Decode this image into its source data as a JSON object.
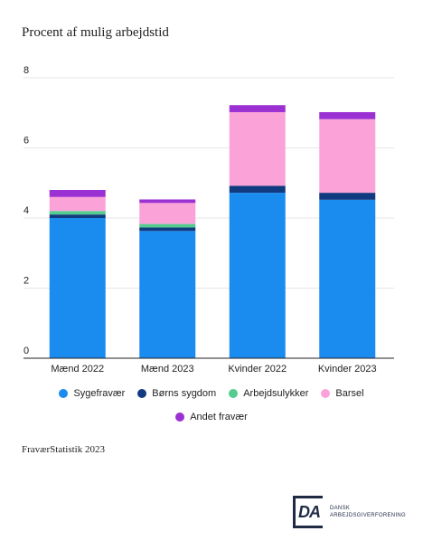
{
  "chart_data": {
    "type": "bar",
    "stacked": true,
    "title": "Procent af mulig arbejdstid",
    "categories": [
      "Mænd 2022",
      "Mænd 2023",
      "Kvinder 2022",
      "Kvinder 2023"
    ],
    "series": [
      {
        "name": "Sygefravær",
        "color": "#1a8cf0",
        "values": [
          4.0,
          3.63,
          4.72,
          4.52
        ]
      },
      {
        "name": "Børns sygdom",
        "color": "#123a80",
        "values": [
          0.1,
          0.1,
          0.2,
          0.2
        ]
      },
      {
        "name": "Arbejdsulykker",
        "color": "#54cc8e",
        "values": [
          0.1,
          0.1,
          0.0,
          0.0
        ]
      },
      {
        "name": "Barsel",
        "color": "#fba3d8",
        "values": [
          0.4,
          0.6,
          2.1,
          2.1
        ]
      },
      {
        "name": "Andet fravær",
        "color": "#9b30d3",
        "values": [
          0.2,
          0.1,
          0.2,
          0.2
        ]
      }
    ],
    "ylim": [
      0,
      8
    ],
    "yticks": [
      "0",
      "2",
      "4",
      "6",
      "8"
    ],
    "grid": true,
    "legend_position": "bottom",
    "xlabel": "",
    "ylabel": ""
  },
  "source": "FraværStatistik 2023",
  "logo": {
    "mark": "DA",
    "line1": "DANSK",
    "line2": "ARBEJDSGIVERFORENING"
  }
}
